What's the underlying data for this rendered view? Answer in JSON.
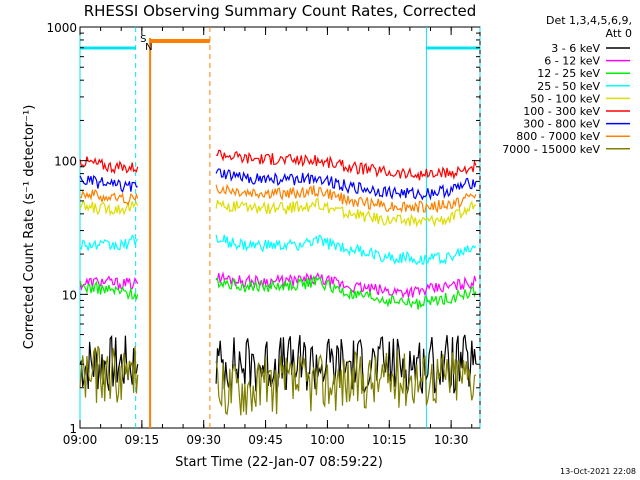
{
  "chart_data": {
    "type": "line",
    "title": "RHESSI Observing Summary Count Rates, Corrected",
    "xlabel": "Start Time (22-Jan-07 08:59:22)",
    "ylabel": "Corrected Count Rate (s⁻¹ detector⁻¹)",
    "y_scale": "log",
    "ylim": [
      1,
      1000
    ],
    "xlim": [
      "09:00",
      "10:37"
    ],
    "x_ticks": [
      "09:00",
      "09:15",
      "09:30",
      "09:45",
      "10:00",
      "10:15",
      "10:30"
    ],
    "y_ticks": [
      "1",
      "10",
      "100",
      "1000"
    ],
    "timestamp": "13-Oct-2021 22:08",
    "legend": {
      "header": [
        "Det 1,3,4,5,6,9,",
        "Att 0"
      ],
      "placement": "right"
    },
    "flags": {
      "saa_marker": "S",
      "night_marker": "N",
      "saa_color": "#ff7f00",
      "night_color": "#00e5ee",
      "night_intervals": [
        [
          "09:00",
          "09:13.5"
        ],
        [
          "10:24",
          "10:37"
        ]
      ],
      "saa_interval": [
        "09:17",
        "09:31.5"
      ]
    },
    "series": [
      {
        "name": "3 - 6 keV",
        "color": "#000000",
        "x": [
          "09:00",
          "09:14",
          "09:33",
          "10:36"
        ],
        "values": [
          3,
          3,
          3,
          3
        ]
      },
      {
        "name": "6 - 12 keV",
        "color": "#ff00ff",
        "x": [
          "09:00",
          "09:05",
          "09:10",
          "09:14",
          "09:33",
          "09:40",
          "09:50",
          "09:58",
          "10:05",
          "10:15",
          "10:22",
          "10:30",
          "10:36"
        ],
        "values": [
          12,
          12.5,
          12,
          12,
          13.5,
          12.5,
          12.5,
          13,
          11.5,
          10.5,
          10.5,
          11.5,
          12.5
        ]
      },
      {
        "name": "12 - 25 keV",
        "color": "#00ee00",
        "x": [
          "09:00",
          "09:05",
          "09:10",
          "09:14",
          "09:33",
          "09:40",
          "09:50",
          "09:58",
          "10:05",
          "10:15",
          "10:22",
          "10:30",
          "10:36"
        ],
        "values": [
          11.5,
          11,
          10.5,
          10,
          12.5,
          11.5,
          11.5,
          12.5,
          10,
          9,
          8.5,
          9.5,
          10.5
        ]
      },
      {
        "name": "25 - 50 keV",
        "color": "#00ffff",
        "x": [
          "09:00",
          "09:05",
          "09:10",
          "09:14",
          "09:33",
          "09:40",
          "09:50",
          "09:58",
          "10:05",
          "10:15",
          "10:22",
          "10:30",
          "10:36"
        ],
        "values": [
          24,
          23,
          23,
          26,
          26,
          23,
          23,
          25,
          22,
          19,
          18.5,
          19,
          23
        ]
      },
      {
        "name": "50 - 100 keV",
        "color": "#dddd00",
        "x": [
          "09:00",
          "09:05",
          "09:10",
          "09:14",
          "09:33",
          "09:40",
          "09:50",
          "09:58",
          "10:05",
          "10:15",
          "10:22",
          "10:30",
          "10:36"
        ],
        "values": [
          45,
          44,
          44,
          46,
          48,
          44,
          44,
          47,
          40,
          36,
          35,
          37,
          46
        ]
      },
      {
        "name": "100 - 300 keV",
        "color": "#ff0000",
        "x": [
          "09:00",
          "09:05",
          "09:10",
          "09:14",
          "09:33",
          "09:40",
          "09:50",
          "09:58",
          "10:05",
          "10:15",
          "10:22",
          "10:30",
          "10:36"
        ],
        "values": [
          100,
          93,
          88,
          90,
          115,
          105,
          102,
          100,
          90,
          82,
          78,
          80,
          92
        ]
      },
      {
        "name": "300 - 800 keV",
        "color": "#0000ff",
        "x": [
          "09:00",
          "09:05",
          "09:10",
          "09:14",
          "09:33",
          "09:40",
          "09:50",
          "09:58",
          "10:05",
          "10:15",
          "10:22",
          "10:30",
          "10:36"
        ],
        "values": [
          72,
          68,
          64,
          64,
          80,
          74,
          72,
          75,
          64,
          58,
          56,
          60,
          70
        ]
      },
      {
        "name": "800 - 7000 keV",
        "color": "#ff8000",
        "x": [
          "09:00",
          "09:05",
          "09:10",
          "09:14",
          "09:33",
          "09:40",
          "09:50",
          "09:58",
          "10:05",
          "10:15",
          "10:22",
          "10:30",
          "10:36"
        ],
        "values": [
          58,
          54,
          52,
          52,
          63,
          58,
          57,
          60,
          50,
          46,
          45,
          47,
          56
        ]
      },
      {
        "name": "7000 - 15000 keV",
        "color": "#808000",
        "x": [
          "09:00",
          "09:14",
          "09:33",
          "10:36"
        ],
        "values": [
          2.5,
          2.5,
          2,
          2.5
        ]
      }
    ]
  }
}
